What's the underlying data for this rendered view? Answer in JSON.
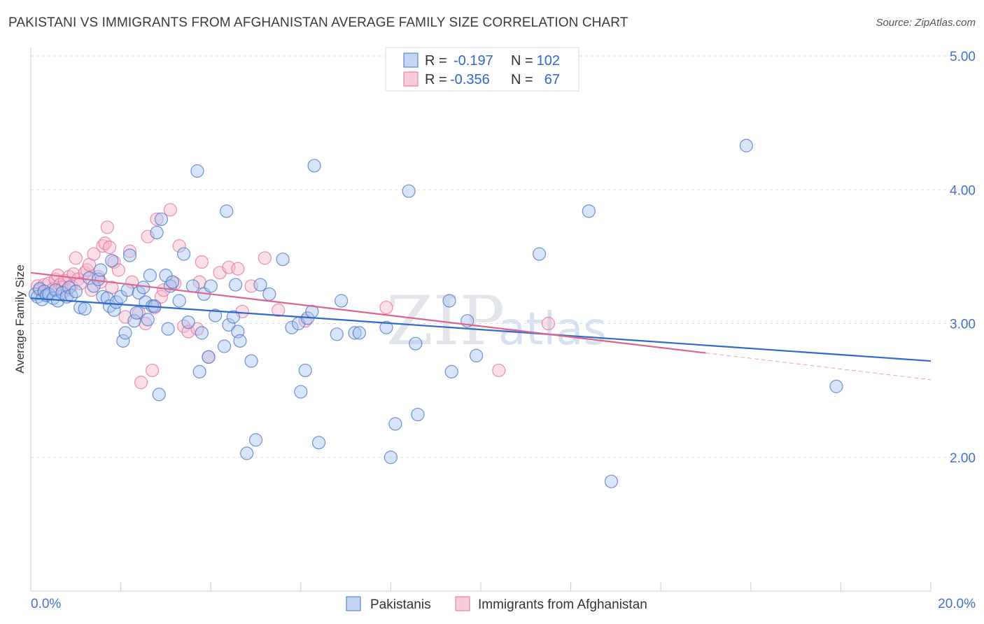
{
  "title": "PAKISTANI VS IMMIGRANTS FROM AFGHANISTAN AVERAGE FAMILY SIZE CORRELATION CHART",
  "source": "Source: ZipAtlas.com",
  "watermark_a": "ZIP",
  "watermark_b": "atlas",
  "colors": {
    "blue": "#4472c4",
    "blue_fill": "#a9c4ef",
    "blue_line": "#2f6ac8",
    "pink": "#e36f9b",
    "pink_fill": "#f4b8cc",
    "pink_line": "#e0638f",
    "grid": "#d9dde3",
    "axis_label": "#4472c4"
  },
  "legend": {
    "r_label": "R =",
    "n_label": "N =",
    "rows": [
      {
        "r": "-0.197",
        "n": "102"
      },
      {
        "r": "-0.356",
        "n": "67"
      }
    ]
  },
  "bottom_legend": [
    "Pakistanis",
    "Immigrants from Afghanistan"
  ],
  "chart_data": {
    "type": "scatter",
    "title": "PAKISTANI VS IMMIGRANTS FROM AFGHANISTAN AVERAGE FAMILY SIZE CORRELATION CHART",
    "xlabel": "",
    "ylabel": "Average Family Size",
    "xlim": [
      0,
      20
    ],
    "ylim": [
      1,
      5
    ],
    "x_tick_labels": [
      "0.0%",
      "20.0%"
    ],
    "y_ticks": [
      2,
      3,
      4,
      5
    ],
    "y_tick_labels": [
      "2.00",
      "3.00",
      "4.00",
      "5.00"
    ],
    "grid": true,
    "legend_position": "top-center",
    "series": [
      {
        "name": "Pakistanis",
        "r": -0.197,
        "n": 102,
        "trend": {
          "x": [
            0,
            20
          ],
          "y": [
            3.19,
            2.72
          ]
        },
        "points": [
          [
            0.1,
            3.22
          ],
          [
            0.15,
            3.2
          ],
          [
            0.2,
            3.26
          ],
          [
            0.25,
            3.18
          ],
          [
            0.3,
            3.24
          ],
          [
            0.35,
            3.21
          ],
          [
            0.4,
            3.22
          ],
          [
            0.5,
            3.19
          ],
          [
            0.55,
            3.25
          ],
          [
            0.6,
            3.17
          ],
          [
            0.7,
            3.23
          ],
          [
            0.8,
            3.2
          ],
          [
            0.85,
            3.27
          ],
          [
            0.9,
            3.21
          ],
          [
            1.0,
            3.24
          ],
          [
            1.1,
            3.12
          ],
          [
            1.2,
            3.11
          ],
          [
            1.3,
            3.34
          ],
          [
            1.4,
            3.28
          ],
          [
            1.5,
            3.33
          ],
          [
            1.55,
            3.4
          ],
          [
            1.6,
            3.2
          ],
          [
            1.7,
            3.19
          ],
          [
            1.75,
            3.13
          ],
          [
            1.8,
            3.47
          ],
          [
            1.85,
            3.1
          ],
          [
            1.9,
            3.16
          ],
          [
            2.0,
            3.2
          ],
          [
            2.05,
            2.87
          ],
          [
            2.1,
            2.93
          ],
          [
            2.15,
            3.25
          ],
          [
            2.2,
            3.51
          ],
          [
            2.3,
            3.02
          ],
          [
            2.35,
            3.08
          ],
          [
            2.4,
            3.23
          ],
          [
            2.5,
            3.27
          ],
          [
            2.55,
            3.16
          ],
          [
            2.6,
            3.03
          ],
          [
            2.65,
            3.36
          ],
          [
            2.7,
            3.13
          ],
          [
            2.75,
            3.13
          ],
          [
            2.8,
            3.68
          ],
          [
            2.85,
            2.47
          ],
          [
            2.9,
            3.78
          ],
          [
            3.0,
            3.36
          ],
          [
            3.05,
            2.96
          ],
          [
            3.1,
            3.28
          ],
          [
            3.15,
            3.31
          ],
          [
            3.3,
            3.17
          ],
          [
            3.4,
            3.52
          ],
          [
            3.5,
            3.01
          ],
          [
            3.6,
            3.28
          ],
          [
            3.7,
            4.14
          ],
          [
            3.75,
            2.64
          ],
          [
            3.8,
            2.93
          ],
          [
            3.85,
            3.22
          ],
          [
            3.95,
            2.75
          ],
          [
            4.0,
            3.28
          ],
          [
            4.1,
            3.06
          ],
          [
            4.3,
            2.83
          ],
          [
            4.35,
            3.84
          ],
          [
            4.4,
            2.99
          ],
          [
            4.5,
            3.05
          ],
          [
            4.55,
            3.29
          ],
          [
            4.6,
            2.94
          ],
          [
            4.65,
            2.87
          ],
          [
            4.8,
            2.03
          ],
          [
            4.9,
            2.72
          ],
          [
            5.0,
            2.13
          ],
          [
            5.1,
            3.29
          ],
          [
            5.3,
            3.22
          ],
          [
            5.6,
            3.48
          ],
          [
            5.8,
            2.97
          ],
          [
            5.95,
            3.0
          ],
          [
            6.0,
            2.49
          ],
          [
            6.1,
            2.65
          ],
          [
            6.15,
            3.04
          ],
          [
            6.25,
            3.09
          ],
          [
            6.3,
            4.18
          ],
          [
            6.4,
            2.11
          ],
          [
            6.8,
            2.92
          ],
          [
            6.9,
            3.17
          ],
          [
            7.2,
            2.93
          ],
          [
            7.3,
            2.93
          ],
          [
            7.9,
            2.97
          ],
          [
            8.0,
            2.0
          ],
          [
            8.1,
            2.25
          ],
          [
            8.4,
            3.99
          ],
          [
            8.55,
            2.85
          ],
          [
            8.6,
            2.32
          ],
          [
            9.3,
            3.17
          ],
          [
            9.35,
            2.64
          ],
          [
            9.7,
            3.02
          ],
          [
            9.9,
            2.76
          ],
          [
            11.3,
            3.52
          ],
          [
            12.4,
            3.84
          ],
          [
            12.9,
            1.82
          ],
          [
            15.9,
            4.33
          ],
          [
            17.9,
            2.53
          ]
        ]
      },
      {
        "name": "Immigrants from Afghanistan",
        "r": -0.356,
        "n": 67,
        "trend": {
          "x": [
            0,
            15
          ],
          "y": [
            3.38,
            2.78
          ]
        },
        "trend_dashed": {
          "x": [
            15,
            20
          ],
          "y": [
            2.78,
            2.58
          ]
        },
        "points": [
          [
            0.15,
            3.28
          ],
          [
            0.2,
            3.25
          ],
          [
            0.3,
            3.29
          ],
          [
            0.35,
            3.22
          ],
          [
            0.4,
            3.3
          ],
          [
            0.5,
            3.26
          ],
          [
            0.55,
            3.33
          ],
          [
            0.6,
            3.36
          ],
          [
            0.65,
            3.29
          ],
          [
            0.7,
            3.27
          ],
          [
            0.75,
            3.32
          ],
          [
            0.8,
            3.25
          ],
          [
            0.85,
            3.35
          ],
          [
            0.9,
            3.28
          ],
          [
            0.95,
            3.37
          ],
          [
            1.0,
            3.49
          ],
          [
            1.05,
            3.33
          ],
          [
            1.1,
            3.3
          ],
          [
            1.2,
            3.38
          ],
          [
            1.25,
            3.4
          ],
          [
            1.3,
            3.44
          ],
          [
            1.35,
            3.25
          ],
          [
            1.4,
            3.52
          ],
          [
            1.5,
            3.35
          ],
          [
            1.55,
            3.31
          ],
          [
            1.6,
            3.58
          ],
          [
            1.65,
            3.6
          ],
          [
            1.7,
            3.72
          ],
          [
            1.75,
            3.57
          ],
          [
            1.8,
            3.27
          ],
          [
            1.85,
            3.46
          ],
          [
            1.95,
            3.4
          ],
          [
            2.1,
            3.05
          ],
          [
            2.2,
            3.54
          ],
          [
            2.25,
            3.31
          ],
          [
            2.4,
            3.08
          ],
          [
            2.45,
            2.56
          ],
          [
            2.55,
            3.0
          ],
          [
            2.6,
            3.65
          ],
          [
            2.7,
            2.65
          ],
          [
            2.75,
            3.12
          ],
          [
            2.8,
            3.78
          ],
          [
            2.9,
            3.2
          ],
          [
            2.95,
            3.25
          ],
          [
            3.1,
            3.85
          ],
          [
            3.2,
            3.3
          ],
          [
            3.3,
            3.58
          ],
          [
            3.4,
            2.98
          ],
          [
            3.5,
            2.94
          ],
          [
            3.7,
            2.96
          ],
          [
            3.75,
            3.31
          ],
          [
            3.8,
            3.46
          ],
          [
            3.95,
            2.75
          ],
          [
            4.2,
            3.38
          ],
          [
            4.4,
            3.42
          ],
          [
            4.6,
            3.41
          ],
          [
            4.7,
            3.09
          ],
          [
            4.9,
            3.28
          ],
          [
            5.2,
            3.49
          ],
          [
            5.5,
            3.1
          ],
          [
            6.1,
            3.02
          ],
          [
            7.9,
            3.12
          ],
          [
            10.4,
            2.65
          ],
          [
            11.5,
            3.0
          ]
        ]
      }
    ]
  }
}
